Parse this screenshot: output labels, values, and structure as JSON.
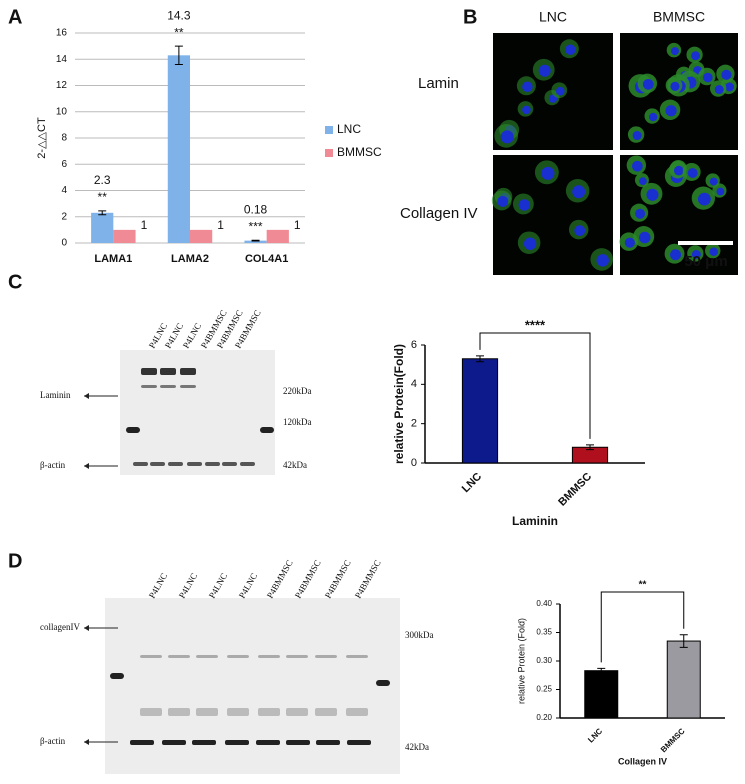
{
  "panel_labels": [
    "A",
    "B",
    "C",
    "D"
  ],
  "microscopy": {
    "columns": [
      "LNC",
      "BMMSC"
    ],
    "rows": [
      "Lamin",
      "Collagen IV"
    ],
    "scale_bar": "50 μm"
  },
  "blot_c": {
    "lanes": [
      "P4LNC",
      "P4LNC",
      "P4LNC",
      "P4BMMSC",
      "P4BMMSC",
      "P4BMMSC"
    ],
    "bands": [
      "Laminin",
      "β-actin"
    ],
    "markers": [
      "220kDa",
      "120kDa",
      "42kDa"
    ]
  },
  "blot_d": {
    "lanes": [
      "P4LNC",
      "P4LNC",
      "P4LNC",
      "P4LNC",
      "P4BMMSC",
      "P4BMMSC",
      "P4BMMSC",
      "P4BMMSC"
    ],
    "bands": [
      "collagenIV",
      "β-actin"
    ],
    "markers": [
      "300kDa",
      "42kDa"
    ]
  },
  "chart_data": [
    {
      "type": "bar",
      "y_label": "2-△△CT",
      "categories": [
        "LAMA1",
        "LAMA2",
        "COL4A1"
      ],
      "series": [
        {
          "name": "LNC",
          "color": "#7fb2e8",
          "values": [
            2.3,
            14.3,
            0.18
          ],
          "errors": [
            0.15,
            0.7,
            0.03
          ]
        },
        {
          "name": "BMMSC",
          "color": "#f08a95",
          "values": [
            1,
            1,
            1
          ]
        }
      ],
      "annotations": [
        "**",
        "**",
        "***"
      ],
      "ylim": [
        0,
        16
      ],
      "yticks": [
        0,
        2,
        4,
        6,
        8,
        10,
        12,
        14,
        16
      ],
      "grid": true
    },
    {
      "type": "bar",
      "y_label": "relative Protein(Fold)",
      "x_label": "Laminin",
      "categories": [
        "LNC",
        "BMMSC"
      ],
      "values": [
        5.3,
        0.8
      ],
      "errors": [
        0.15,
        0.12
      ],
      "colors": [
        "#0d1a8c",
        "#b0101e"
      ],
      "significance": "****",
      "ylim": [
        0,
        6
      ],
      "yticks": [
        0,
        2,
        4,
        6
      ],
      "grid": false
    },
    {
      "type": "bar",
      "y_label": "relative Protein (Fold)",
      "x_label": "Collagen IV",
      "categories": [
        "LNC",
        "BMMSC"
      ],
      "values": [
        0.283,
        0.335
      ],
      "errors": [
        0.004,
        0.011
      ],
      "colors": [
        "#000000",
        "#9a9aa0"
      ],
      "significance": "**",
      "ylim": [
        0.2,
        0.4
      ],
      "yticks": [
        {
          "value": 0.2,
          "label": "0.20"
        },
        {
          "value": 0.25,
          "label": "0.25"
        },
        {
          "value": 0.3,
          "label": "0.30"
        },
        {
          "value": 0.35,
          "label": "0.35"
        },
        {
          "value": 0.4,
          "label": "0.40"
        }
      ],
      "grid": false
    }
  ]
}
